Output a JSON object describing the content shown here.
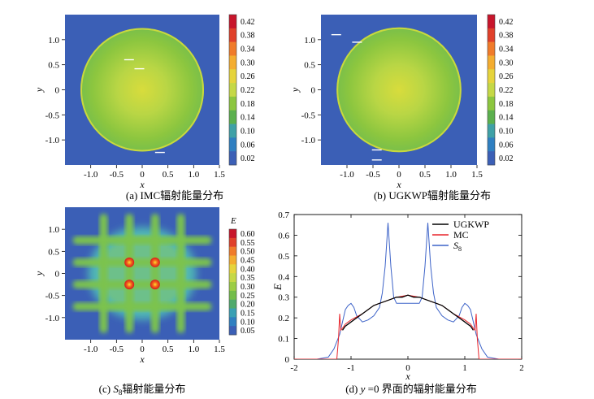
{
  "colors": {
    "background": "#3b5fb6",
    "circle_fill": "#8cc63f",
    "line_ugkwp": "#000000",
    "line_mc": "#e8252b",
    "line_s8": "#3d63c8"
  },
  "panels": {
    "a": {
      "caption": "(a)  IMC辐射能量分布"
    },
    "b": {
      "caption": "(b)  UGKWP辐射能量分布"
    },
    "c": {
      "caption_prefix": "(c)  ",
      "caption_s": "S",
      "caption_sub": "8",
      "caption_rest": "辐射能量分布"
    },
    "d": {
      "caption_prefix": "(d)  ",
      "caption_y": "y",
      "caption_rest": " =0 界面的辐射能量分布"
    }
  },
  "chart_data": [
    {
      "type": "heatmap",
      "panel": "a",
      "title": "IMC辐射能量分布",
      "xlabel": "x",
      "ylabel": "y",
      "xlim": [
        -1.5,
        1.5
      ],
      "ylim": [
        -1.5,
        1.5
      ],
      "xticks": [
        "-1.0",
        "-0.5",
        "0",
        "0.5",
        "1.0",
        "1.5"
      ],
      "yticks": [
        "1.0",
        "0.5",
        "0",
        "-0.5",
        "-1.0"
      ],
      "colorbar": [
        "0.42",
        "0.38",
        "0.34",
        "0.30",
        "0.26",
        "0.22",
        "0.18",
        "0.14",
        "0.10",
        "0.06",
        "0.02"
      ],
      "circle_radius": 1.2,
      "background_value": 0.02,
      "center_value": 0.3,
      "rim_value": 0.24
    },
    {
      "type": "heatmap",
      "panel": "b",
      "title": "UGKWP辐射能量分布",
      "xlabel": "x",
      "ylabel": "y",
      "xlim": [
        -1.5,
        1.5
      ],
      "ylim": [
        -1.5,
        1.5
      ],
      "xticks": [
        "-1.0",
        "-0.5",
        "0",
        "0.5",
        "1.0",
        "1.5"
      ],
      "yticks": [
        "1.0",
        "0.5",
        "0",
        "-0.5",
        "-1.0"
      ],
      "colorbar": [
        "0.42",
        "0.38",
        "0.34",
        "0.30",
        "0.26",
        "0.22",
        "0.18",
        "0.14",
        "0.10",
        "0.06",
        "0.02"
      ],
      "circle_radius": 1.2,
      "background_value": 0.02,
      "center_value": 0.3,
      "rim_value": 0.24
    },
    {
      "type": "heatmap",
      "panel": "c",
      "title": "S8辐射能量分布",
      "xlabel": "x",
      "ylabel": "y",
      "colorbar_title": "E",
      "xlim": [
        -1.5,
        1.5
      ],
      "ylim": [
        -1.5,
        1.5
      ],
      "xticks": [
        "-1.0",
        "-0.5",
        "0",
        "0.5",
        "1.0",
        "1.5"
      ],
      "yticks": [
        "1.0",
        "0.5",
        "0",
        "-0.5",
        "-1.0"
      ],
      "colorbar": [
        "0.60",
        "0.55",
        "0.50",
        "0.45",
        "0.40",
        "0.35",
        "0.30",
        "0.25",
        "0.20",
        "0.15",
        "0.10",
        "0.05"
      ],
      "ray_offsets": [
        0.25,
        0.75
      ],
      "hotspots": [
        [
          -0.25,
          0.25
        ],
        [
          0.25,
          0.25
        ],
        [
          -0.25,
          -0.25
        ],
        [
          0.25,
          -0.25
        ]
      ],
      "hotspot_value": 0.6
    },
    {
      "type": "line",
      "panel": "d",
      "title": "y =0 界面的辐射能量分布",
      "xlabel": "x",
      "ylabel": "E",
      "xlim": [
        -2,
        2
      ],
      "ylim": [
        0,
        0.7
      ],
      "xticks": [
        "-2",
        "-1",
        "0",
        "1",
        "2"
      ],
      "yticks": [
        "0",
        "0.1",
        "0.2",
        "0.3",
        "0.4",
        "0.5",
        "0.6",
        "0.7"
      ],
      "legend_position": "top-right",
      "series": [
        {
          "name": "UGKWP",
          "x": [
            -1.15,
            -1.1,
            -1.05,
            -1.0,
            -0.9,
            -0.8,
            -0.7,
            -0.6,
            -0.5,
            -0.4,
            -0.3,
            -0.2,
            -0.1,
            0.0,
            0.1,
            0.2,
            0.3,
            0.4,
            0.5,
            0.6,
            0.7,
            0.8,
            0.9,
            1.0,
            1.05,
            1.1,
            1.15
          ],
          "y": [
            0.14,
            0.16,
            0.17,
            0.18,
            0.2,
            0.22,
            0.24,
            0.26,
            0.27,
            0.28,
            0.29,
            0.3,
            0.3,
            0.31,
            0.3,
            0.3,
            0.29,
            0.28,
            0.27,
            0.26,
            0.24,
            0.22,
            0.2,
            0.18,
            0.17,
            0.16,
            0.14
          ]
        },
        {
          "name": "MC",
          "x": [
            -2.0,
            -1.25,
            -1.22,
            -1.2,
            -1.18,
            -1.15,
            -1.1,
            -1.0,
            -0.8,
            -0.6,
            -0.4,
            -0.2,
            0.0,
            0.2,
            0.4,
            0.6,
            0.8,
            1.0,
            1.1,
            1.15,
            1.18,
            1.2,
            1.22,
            1.25,
            2.0
          ],
          "y": [
            0.0,
            0.0,
            0.1,
            0.22,
            0.14,
            0.15,
            0.17,
            0.19,
            0.22,
            0.26,
            0.28,
            0.3,
            0.31,
            0.3,
            0.28,
            0.26,
            0.22,
            0.19,
            0.17,
            0.15,
            0.14,
            0.22,
            0.1,
            0.0,
            0.0
          ]
        },
        {
          "name": "S8",
          "x": [
            -2.0,
            -1.6,
            -1.4,
            -1.3,
            -1.2,
            -1.15,
            -1.1,
            -1.05,
            -1.0,
            -0.95,
            -0.9,
            -0.8,
            -0.7,
            -0.6,
            -0.5,
            -0.45,
            -0.4,
            -0.35,
            -0.3,
            -0.25,
            -0.2,
            -0.1,
            0.0,
            0.1,
            0.2,
            0.25,
            0.3,
            0.35,
            0.4,
            0.45,
            0.5,
            0.6,
            0.7,
            0.8,
            0.9,
            0.95,
            1.0,
            1.05,
            1.1,
            1.15,
            1.2,
            1.3,
            1.4,
            1.6,
            2.0
          ],
          "y": [
            0.0,
            0.0,
            0.01,
            0.05,
            0.12,
            0.18,
            0.24,
            0.26,
            0.27,
            0.25,
            0.21,
            0.18,
            0.19,
            0.21,
            0.25,
            0.32,
            0.45,
            0.66,
            0.45,
            0.3,
            0.27,
            0.27,
            0.27,
            0.27,
            0.27,
            0.3,
            0.45,
            0.66,
            0.45,
            0.32,
            0.25,
            0.21,
            0.19,
            0.18,
            0.21,
            0.25,
            0.27,
            0.26,
            0.24,
            0.18,
            0.12,
            0.05,
            0.01,
            0.0,
            0.0
          ]
        }
      ]
    }
  ]
}
